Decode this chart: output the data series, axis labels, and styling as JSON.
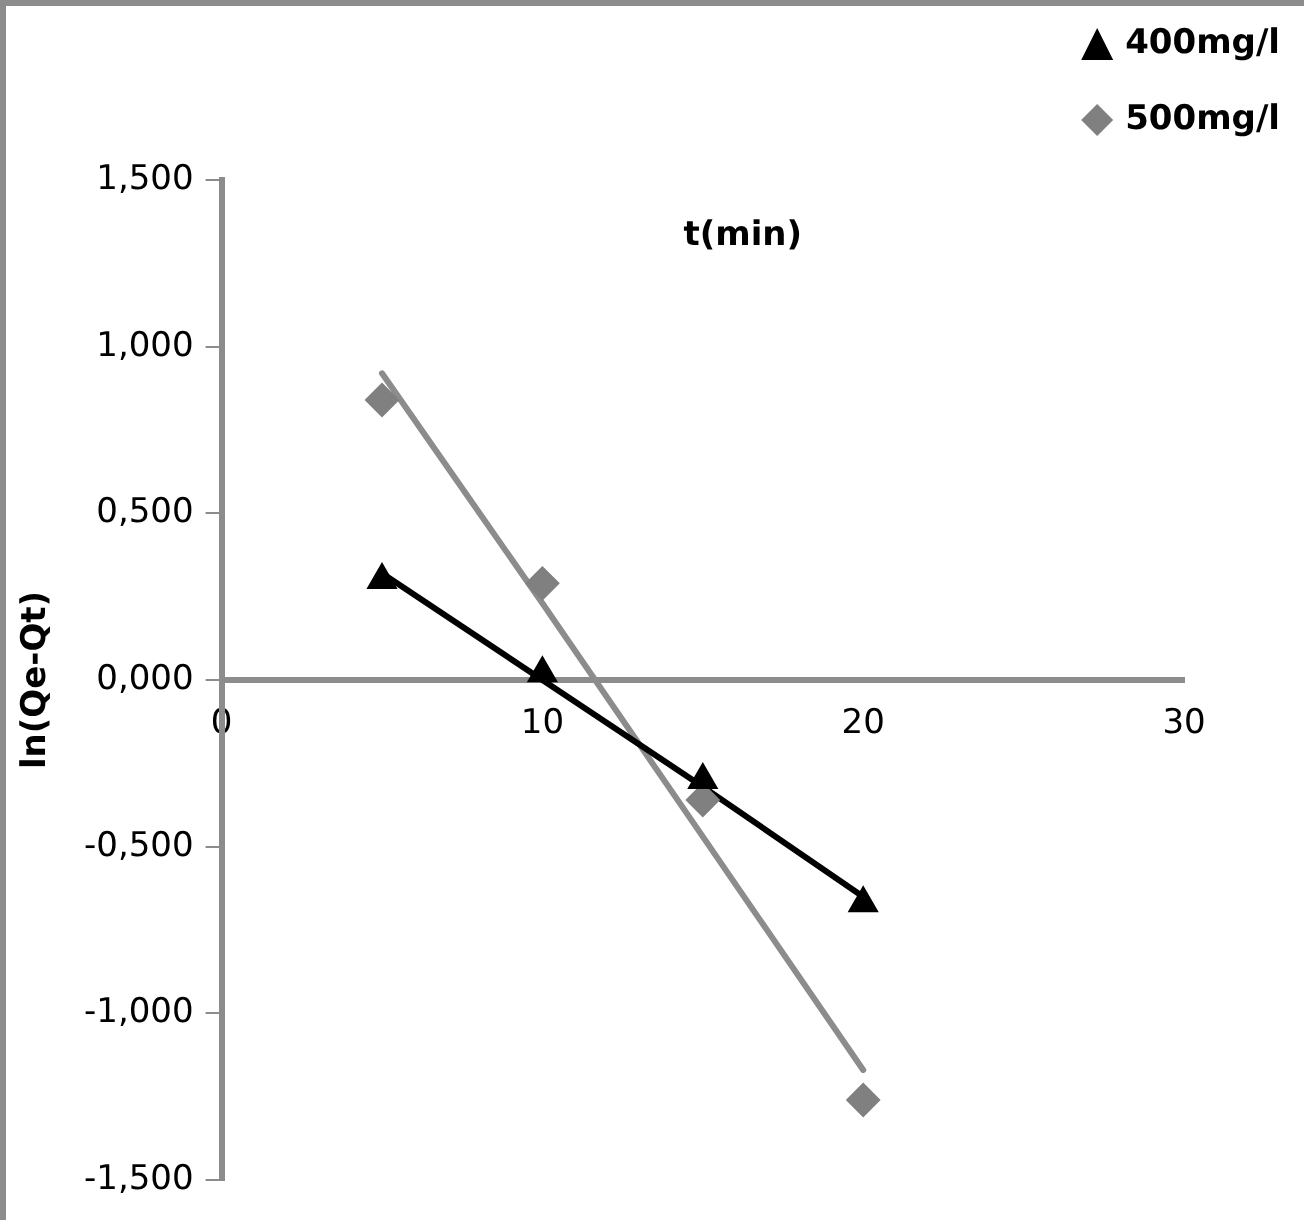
{
  "chart_data": {
    "type": "scatter",
    "xlabel": "t(min)",
    "ylabel": "ln(Qe-Qt)",
    "x": [
      5,
      10,
      15,
      20
    ],
    "series": [
      {
        "name": "400mg/l",
        "color": "#000000",
        "marker": "triangle",
        "values": [
          0.3,
          0.02,
          -0.3,
          -0.67
        ]
      },
      {
        "name": "500mg/l",
        "color": "#808080",
        "marker": "diamond",
        "values": [
          0.84,
          0.29,
          -0.36,
          -1.26
        ]
      },
      {
        "type": "line",
        "color": "#000000",
        "values": [
          0.32,
          0.0,
          -0.32,
          -0.65
        ],
        "marker": "none"
      },
      {
        "type": "line",
        "color": "#8c8c8c",
        "values": [
          0.92,
          0.23,
          -0.47,
          -1.17
        ],
        "marker": "none"
      }
    ],
    "xlim": [
      0,
      30
    ],
    "xticks": [
      0,
      10,
      20,
      30
    ],
    "ylim": [
      -1.5,
      1.5
    ],
    "yticks": [
      {
        "value": -1.5,
        "label": "-1,500"
      },
      {
        "value": -1,
        "label": "-1,000"
      },
      {
        "value": -0.5,
        "label": "-0,500"
      },
      {
        "value": 0,
        "label": "0,000"
      },
      {
        "value": 0.5,
        "label": "0,500"
      },
      {
        "value": 1,
        "label": "1,000"
      },
      {
        "value": 1.5,
        "label": "1,500"
      }
    ],
    "grid": false,
    "legend": "top right"
  }
}
